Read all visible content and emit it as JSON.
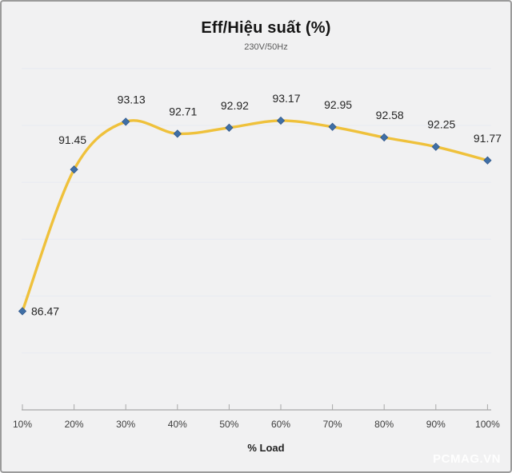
{
  "watermark": "PCMAG.VN",
  "chart_data": {
    "type": "line",
    "title": "Eff/Hiệu suất (%)",
    "subtitle": "230V/50Hz",
    "xlabel": "% Load",
    "ylabel": "",
    "categories": [
      "10%",
      "20%",
      "30%",
      "40%",
      "50%",
      "60%",
      "70%",
      "80%",
      "90%",
      "100%"
    ],
    "series": [
      {
        "name": "Eff/Hiệu suất (%)",
        "values": [
          86.47,
          91.45,
          93.13,
          92.71,
          92.92,
          93.17,
          92.95,
          92.58,
          92.25,
          91.77
        ]
      }
    ],
    "data_labels": [
      "86.47",
      "91.45",
      "93.13",
      "92.71",
      "92.92",
      "93.17",
      "92.95",
      "92.58",
      "92.25",
      "91.77"
    ],
    "ylim": [
      83,
      95.7
    ],
    "gridline_values": [
      85,
      87,
      89,
      91,
      93,
      95
    ],
    "grid": true,
    "legend_position": "none",
    "smooth": true,
    "colors": {
      "line": "#efc13b",
      "marker_fill": "#3f6fa6",
      "marker_stroke": "#2f568a",
      "background": "#f1f1f2",
      "gridline": "#e7eaf2",
      "axis": "#a8a8a8"
    }
  }
}
